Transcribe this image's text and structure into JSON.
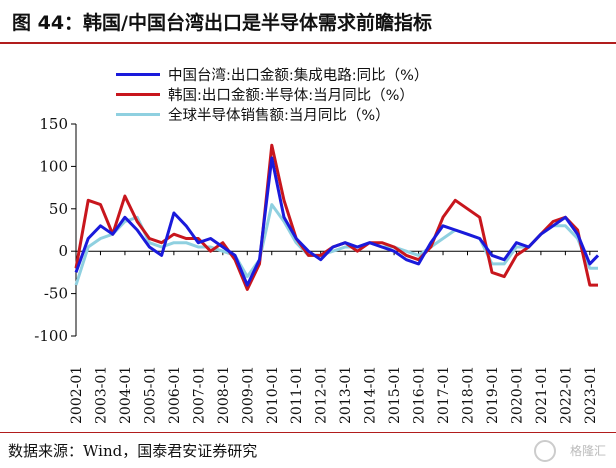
{
  "header": {
    "title": "图 44：韩国/中国台湾出口是半导体需求前瞻指标"
  },
  "source": {
    "text": "数据来源：Wind，国泰君安证券研究"
  },
  "watermark": {
    "text": "格隆汇"
  },
  "chart_data": {
    "type": "line",
    "xlabel": "",
    "ylabel": "",
    "ylim": [
      -100,
      150
    ],
    "xlim": [
      "2002-01",
      "2023-05"
    ],
    "yticks": [
      -100,
      -50,
      0,
      50,
      100,
      150
    ],
    "xticks": [
      "2002-01",
      "2003-01",
      "2004-01",
      "2005-01",
      "2006-01",
      "2007-01",
      "2008-01",
      "2009-01",
      "2010-01",
      "2011-01",
      "2012-01",
      "2013-01",
      "2014-01",
      "2015-01",
      "2016-01",
      "2017-01",
      "2018-01",
      "2019-01",
      "2020-01",
      "2021-01",
      "2022-01",
      "2023-01"
    ],
    "grid": false,
    "legend_position": "top-left",
    "series": [
      {
        "name": "中国台湾:出口金额:集成电路:同比（%）",
        "color": "#1a1adb",
        "x": [
          "2002-01",
          "2002-07",
          "2003-01",
          "2003-07",
          "2004-01",
          "2004-07",
          "2005-01",
          "2005-07",
          "2006-01",
          "2006-07",
          "2007-01",
          "2007-07",
          "2008-01",
          "2008-07",
          "2009-01",
          "2009-07",
          "2010-01",
          "2010-07",
          "2011-01",
          "2011-07",
          "2012-01",
          "2012-07",
          "2013-01",
          "2013-07",
          "2014-01",
          "2014-07",
          "2015-01",
          "2015-07",
          "2016-01",
          "2016-07",
          "2017-01",
          "2017-07",
          "2018-01",
          "2018-07",
          "2019-01",
          "2019-07",
          "2020-01",
          "2020-07",
          "2021-01",
          "2021-07",
          "2022-01",
          "2022-07",
          "2023-01",
          "2023-05"
        ],
        "values": [
          -25,
          15,
          30,
          20,
          40,
          25,
          5,
          -5,
          45,
          30,
          10,
          15,
          5,
          -5,
          -40,
          -10,
          110,
          40,
          15,
          0,
          -10,
          5,
          10,
          5,
          10,
          5,
          0,
          -10,
          -15,
          10,
          30,
          25,
          20,
          15,
          -5,
          -10,
          10,
          5,
          20,
          30,
          40,
          20,
          -15,
          -5
        ]
      },
      {
        "name": "韩国:出口金额:半导体:当月同比（%）",
        "color": "#c8161d",
        "x": [
          "2002-01",
          "2002-07",
          "2003-01",
          "2003-07",
          "2004-01",
          "2004-07",
          "2005-01",
          "2005-07",
          "2006-01",
          "2006-07",
          "2007-01",
          "2007-07",
          "2008-01",
          "2008-07",
          "2009-01",
          "2009-07",
          "2010-01",
          "2010-07",
          "2011-01",
          "2011-07",
          "2012-01",
          "2012-07",
          "2013-01",
          "2013-07",
          "2014-01",
          "2014-07",
          "2015-01",
          "2015-07",
          "2016-01",
          "2016-07",
          "2017-01",
          "2017-07",
          "2018-01",
          "2018-07",
          "2019-01",
          "2019-07",
          "2020-01",
          "2020-07",
          "2021-01",
          "2021-07",
          "2022-01",
          "2022-07",
          "2023-01",
          "2023-05"
        ],
        "values": [
          -20,
          60,
          55,
          20,
          65,
          35,
          15,
          10,
          20,
          15,
          15,
          0,
          10,
          -10,
          -45,
          -15,
          125,
          60,
          15,
          -5,
          -5,
          5,
          10,
          0,
          10,
          10,
          5,
          -5,
          -10,
          5,
          40,
          60,
          50,
          40,
          -25,
          -30,
          -5,
          5,
          20,
          35,
          40,
          25,
          -40,
          -40
        ]
      },
      {
        "name": "全球半导体销售额:当月同比（%）",
        "color": "#8fd0e0",
        "x": [
          "2002-01",
          "2002-07",
          "2003-01",
          "2003-07",
          "2004-01",
          "2004-07",
          "2005-01",
          "2005-07",
          "2006-01",
          "2006-07",
          "2007-01",
          "2007-07",
          "2008-01",
          "2008-07",
          "2009-01",
          "2009-07",
          "2010-01",
          "2010-07",
          "2011-01",
          "2011-07",
          "2012-01",
          "2012-07",
          "2013-01",
          "2013-07",
          "2014-01",
          "2014-07",
          "2015-01",
          "2015-07",
          "2016-01",
          "2016-07",
          "2017-01",
          "2017-07",
          "2018-01",
          "2018-07",
          "2019-01",
          "2019-07",
          "2020-01",
          "2020-07",
          "2021-01",
          "2021-07",
          "2022-01",
          "2022-07",
          "2023-01",
          "2023-05"
        ],
        "values": [
          -40,
          5,
          15,
          20,
          35,
          40,
          10,
          5,
          10,
          10,
          5,
          5,
          0,
          -5,
          -30,
          -10,
          55,
          35,
          10,
          -5,
          -5,
          0,
          5,
          5,
          10,
          5,
          5,
          0,
          -5,
          5,
          15,
          25,
          20,
          15,
          -15,
          -15,
          5,
          5,
          20,
          30,
          30,
          15,
          -20,
          -20
        ]
      }
    ]
  }
}
